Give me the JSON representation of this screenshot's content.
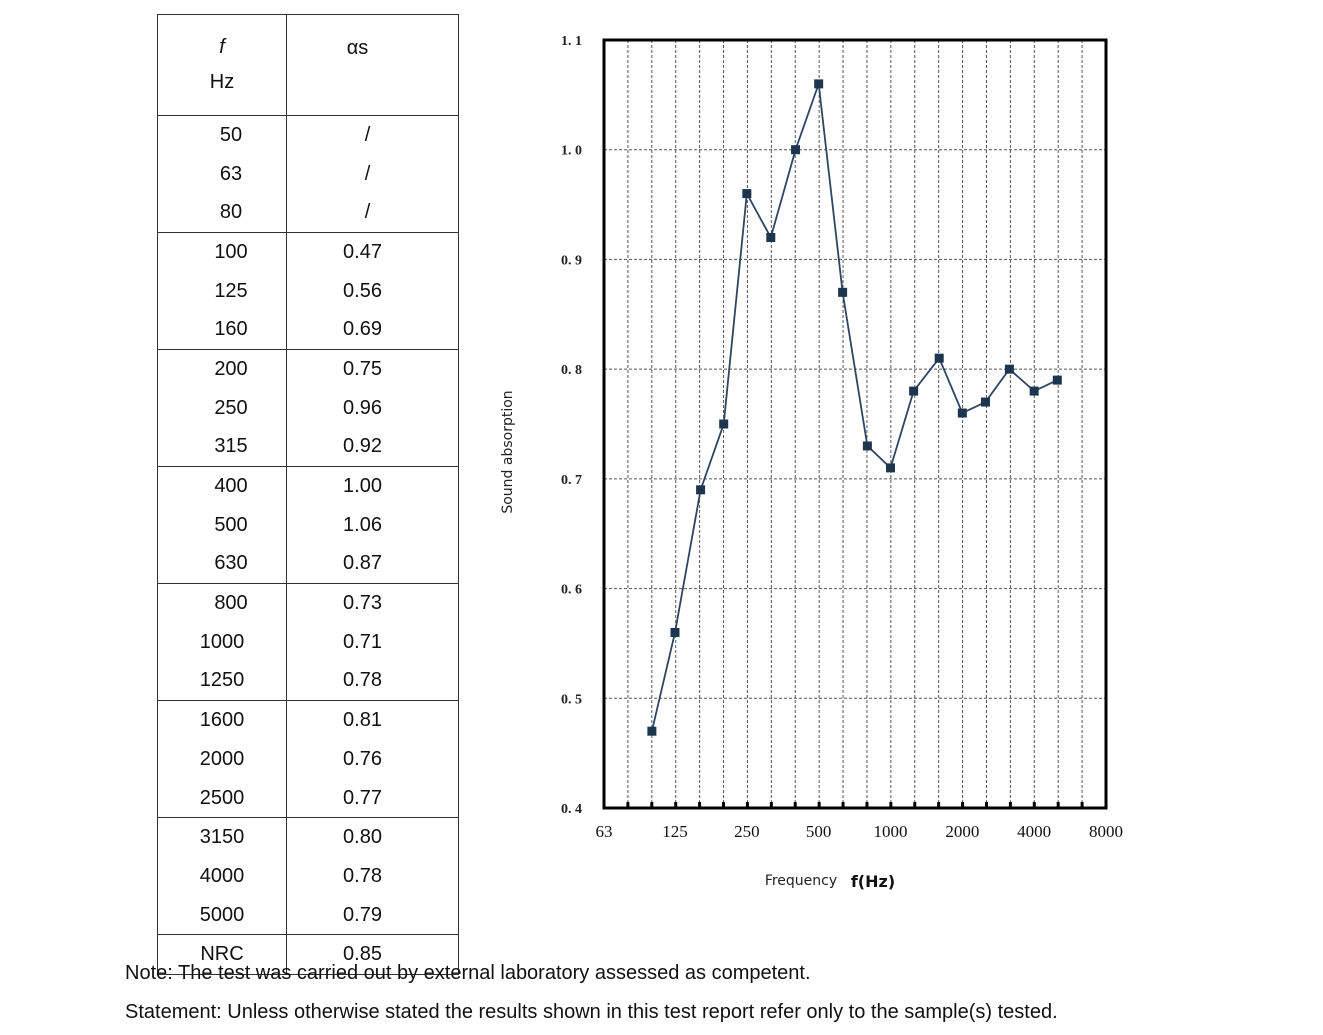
{
  "table": {
    "headers": {
      "col1_symbol": "f",
      "col1_unit": "Hz",
      "col2": "αs"
    },
    "groups": [
      [
        [
          "50",
          "/"
        ],
        [
          "63",
          "/"
        ],
        [
          "80",
          "/"
        ]
      ],
      [
        [
          "100",
          "0.47"
        ],
        [
          "125",
          "0.56"
        ],
        [
          "160",
          "0.69"
        ]
      ],
      [
        [
          "200",
          "0.75"
        ],
        [
          "250",
          "0.96"
        ],
        [
          "315",
          "0.92"
        ]
      ],
      [
        [
          "400",
          "1.00"
        ],
        [
          "500",
          "1.06"
        ],
        [
          "630",
          "0.87"
        ]
      ],
      [
        [
          "800",
          "0.73"
        ],
        [
          "1000",
          "0.71"
        ],
        [
          "1250",
          "0.78"
        ]
      ],
      [
        [
          "1600",
          "0.81"
        ],
        [
          "2000",
          "0.76"
        ],
        [
          "2500",
          "0.77"
        ]
      ],
      [
        [
          "3150",
          "0.80"
        ],
        [
          "4000",
          "0.78"
        ],
        [
          "5000",
          "0.79"
        ]
      ],
      [
        [
          "NRC",
          "0.85"
        ]
      ]
    ]
  },
  "chart_data": {
    "type": "line",
    "xlabel": "Frequency",
    "xlabel_unit": "f(Hz)",
    "ylabel": "Sound absorption",
    "x_scale": "log (1/3-octave bands)",
    "xlim": [
      63,
      8000
    ],
    "ylim": [
      0.4,
      1.1
    ],
    "x_tick_labels": [
      "63",
      "125",
      "250",
      "500",
      "1000",
      "2000",
      "4000",
      "8000"
    ],
    "y_tick_labels": [
      "0. 4",
      "0. 5",
      "0. 6",
      "0. 7",
      "0. 8",
      "0. 9",
      "1. 0",
      "1. 1"
    ],
    "grid": true,
    "line_color": "#2e4661",
    "marker": "square",
    "x": [
      100,
      125,
      160,
      200,
      250,
      315,
      400,
      500,
      630,
      800,
      1000,
      1250,
      1600,
      2000,
      2500,
      3150,
      4000,
      5000
    ],
    "values": [
      0.47,
      0.56,
      0.69,
      0.75,
      0.96,
      0.92,
      1.0,
      1.06,
      0.87,
      0.73,
      0.71,
      0.78,
      0.81,
      0.76,
      0.77,
      0.8,
      0.78,
      0.79
    ]
  },
  "notes": {
    "note": "Note: The test was carried out by external laboratory assessed as competent.",
    "statement": "Statement: Unless otherwise stated the results shown in this test report refer only to the sample(s) tested."
  }
}
